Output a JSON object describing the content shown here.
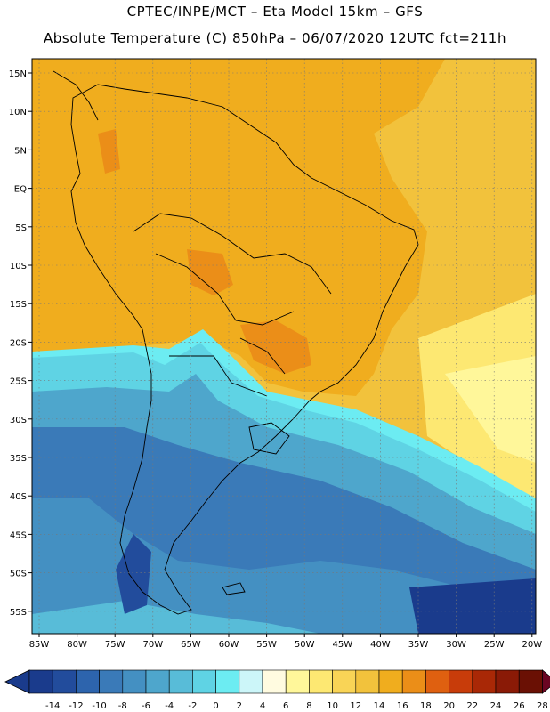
{
  "header": {
    "title_line1": "CPTEC/INPE/MCT –  Eta Model 15km – GFS",
    "title_line2": "Absolute Temperature (C) 850hPa – 06/07/2020 12UTC fct=211h"
  },
  "map": {
    "lat_labels": [
      "15N",
      "10N",
      "5N",
      "EQ",
      "5S",
      "10S",
      "15S",
      "20S",
      "25S",
      "30S",
      "35S",
      "40S",
      "45S",
      "50S",
      "55S"
    ],
    "lon_labels": [
      "85W",
      "80W",
      "75W",
      "70W",
      "65W",
      "60W",
      "55W",
      "50W",
      "45W",
      "40W",
      "35W",
      "30W",
      "25W",
      "20W"
    ]
  },
  "colorbar": {
    "labels": [
      "-14",
      "-12",
      "-10",
      "-8",
      "-6",
      "-4",
      "-2",
      "0",
      "2",
      "4",
      "6",
      "8",
      "10",
      "12",
      "14",
      "16",
      "18",
      "20",
      "22",
      "24",
      "26",
      "28"
    ],
    "colors": [
      "#1a3b8c",
      "#224c9c",
      "#2d64ad",
      "#3a7ab8",
      "#4490c2",
      "#4ea6cc",
      "#58bcd8",
      "#5fd3e4",
      "#6cecf2",
      "#ccf6f9",
      "#fffbe0",
      "#fff79a",
      "#fde872",
      "#f9d456",
      "#f2c23c",
      "#f0ad1e",
      "#eb8e18",
      "#df6010",
      "#c83c0a",
      "#a92806",
      "#8a1a06",
      "#6a1004"
    ]
  }
}
